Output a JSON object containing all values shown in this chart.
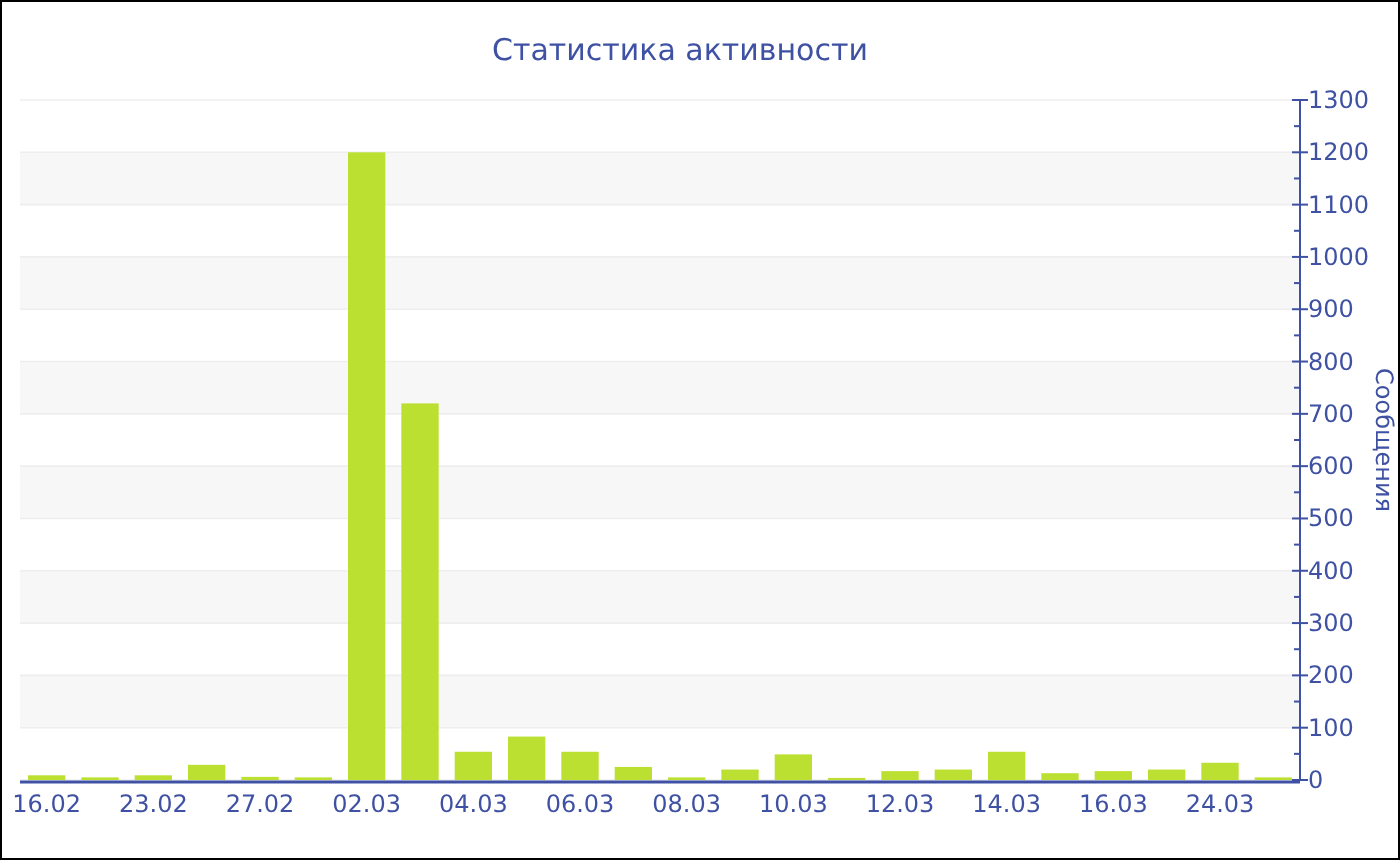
{
  "chart_data": {
    "type": "bar",
    "title": "Статистика активности",
    "ylabel": "Сообщения",
    "categories": [
      "16.02",
      null,
      "23.02",
      null,
      "27.02",
      null,
      "02.03",
      null,
      "04.03",
      null,
      "06.03",
      null,
      "08.03",
      null,
      "10.03",
      null,
      "12.03",
      null,
      "14.03",
      null,
      "16.03",
      null,
      "24.03",
      null
    ],
    "values": [
      9,
      5,
      9,
      29,
      6,
      5,
      1200,
      720,
      54,
      83,
      54,
      25,
      5,
      20,
      49,
      4,
      17,
      20,
      54,
      13,
      17,
      20,
      33,
      5
    ],
    "color": "#bce032",
    "ylim": [
      0,
      1300
    ],
    "yticks": [
      0,
      100,
      200,
      300,
      400,
      500,
      600,
      700,
      800,
      900,
      1000,
      1100,
      1200,
      1300
    ],
    "grid": "y"
  }
}
